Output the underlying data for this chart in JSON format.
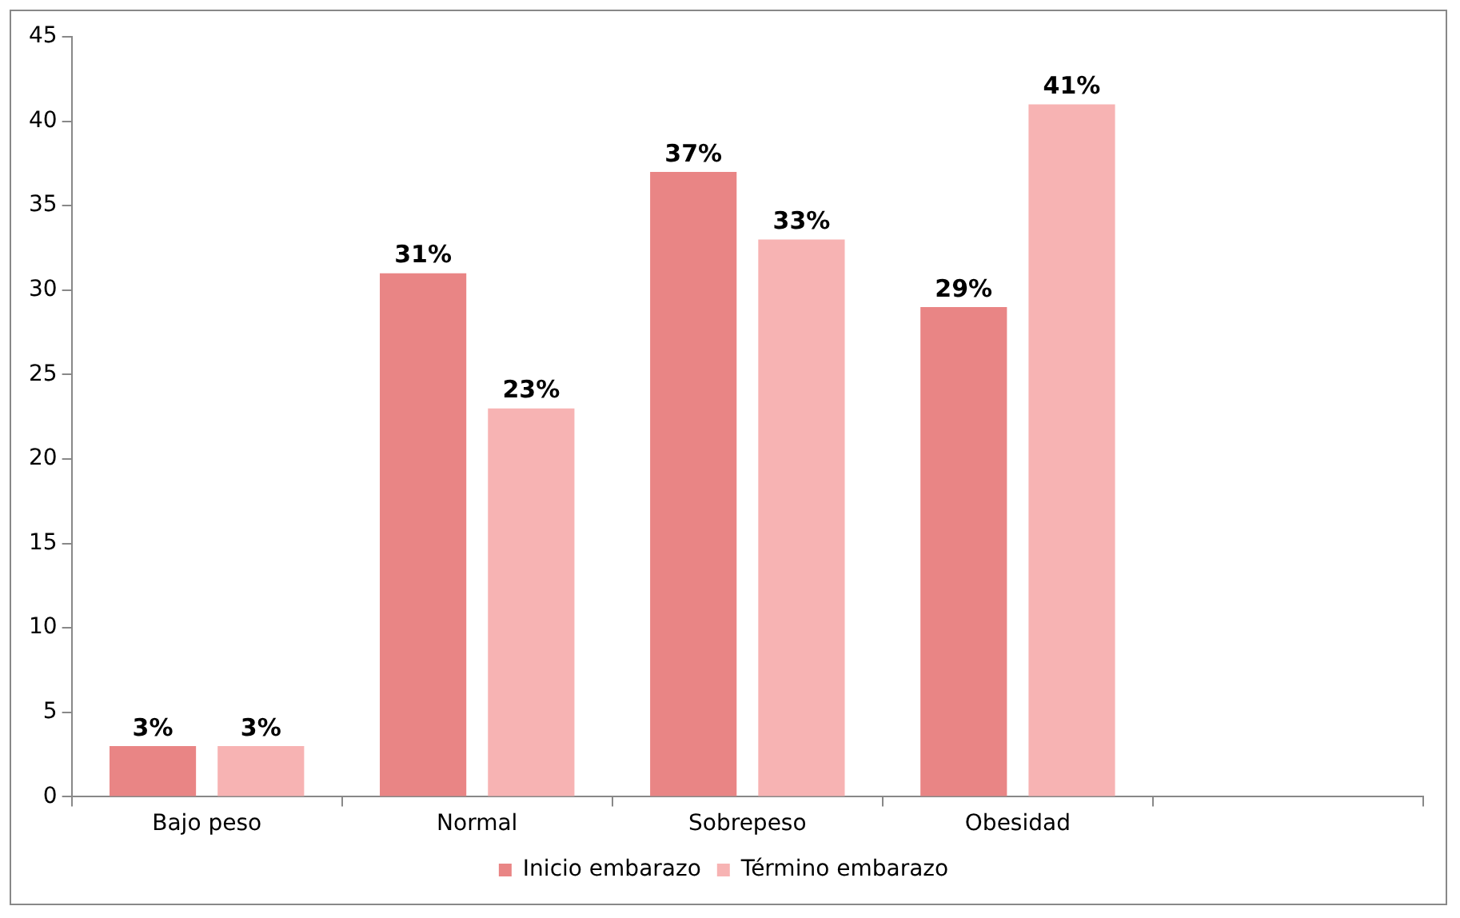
{
  "chart_data": {
    "type": "bar",
    "categories": [
      "Bajo peso",
      "Normal",
      "Sobrepeso",
      "Obesidad",
      null
    ],
    "series": [
      {
        "name": "Inicio embarazo",
        "color": "#e98585",
        "values": [
          3,
          31,
          37,
          29,
          null
        ],
        "value_labels": [
          "3%",
          "31%",
          "37%",
          "29%",
          null
        ]
      },
      {
        "name": "Término embarazo",
        "color": "#f7b3b3",
        "values": [
          3,
          23,
          33,
          41,
          null
        ],
        "value_labels": [
          "3%",
          "23%",
          "33%",
          "41%",
          null
        ]
      }
    ],
    "ylim": [
      0,
      45
    ],
    "yticks": [
      0,
      5,
      10,
      15,
      20,
      25,
      30,
      35,
      40,
      45
    ],
    "grid": false,
    "legend": "bottom"
  }
}
